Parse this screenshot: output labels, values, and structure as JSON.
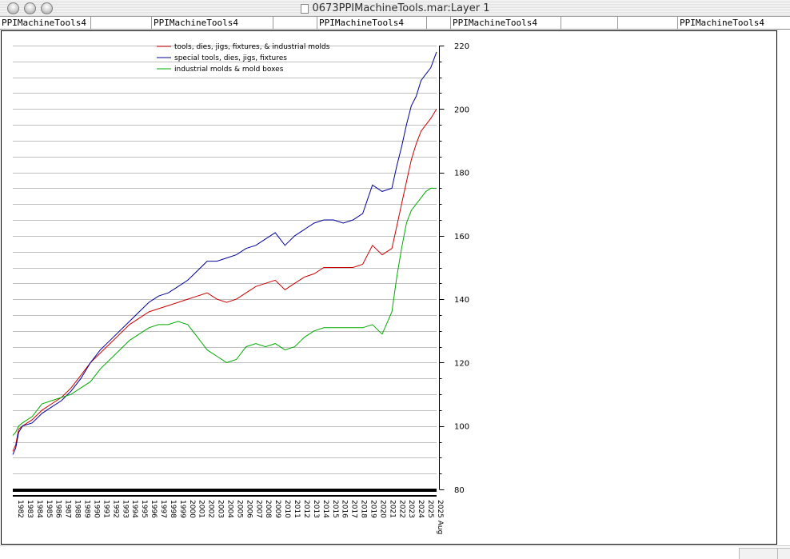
{
  "window": {
    "title": "0673PPIMachineTools.mar:Layer 1"
  },
  "tabs": [
    {
      "label": "PPIMachineTools4"
    },
    {
      "label": ""
    },
    {
      "label": "PPIMachineTools4"
    },
    {
      "label": ""
    },
    {
      "label": "PPIMachineTools4"
    },
    {
      "label": ""
    },
    {
      "label": "PPIMachineTools4"
    },
    {
      "label": ""
    },
    {
      "label": ""
    },
    {
      "label": "PPIMachineTools4"
    }
  ],
  "colors": {
    "series1": "#cc0000",
    "series2": "#00009c",
    "series3": "#00aa00",
    "grid": "#c0c0c0"
  },
  "chart_data": {
    "type": "line",
    "title": "",
    "xlabel": "",
    "ylabel": "",
    "xlim": [
      1982.0,
      2025.6
    ],
    "ylim": [
      80,
      220
    ],
    "y_axis_position": "right",
    "grid": true,
    "legend_position": "top-left",
    "x_tick_labels": [
      "1982",
      "1983",
      "1984",
      "1985",
      "1986",
      "1987",
      "1988",
      "1989",
      "1990",
      "1991",
      "1992",
      "1993",
      "1994",
      "1995",
      "1996",
      "1997",
      "1998",
      "1999",
      "2000",
      "2001",
      "2002",
      "2003",
      "2004",
      "2005",
      "2006",
      "2007",
      "2008",
      "2009",
      "2010",
      "2011",
      "2012",
      "2013",
      "2014",
      "2015",
      "2016",
      "2017",
      "2018",
      "2019",
      "2020",
      "2021",
      "2022",
      "2023",
      "2024",
      "2025",
      "2025 Aug"
    ],
    "y_tick_labels": [
      "80",
      "100",
      "120",
      "140",
      "160",
      "180",
      "200",
      "220"
    ],
    "series": [
      {
        "name": "tools, dies, jigs, fixtures, & industrial molds",
        "x": [
          1982.0,
          1982.3,
          1982.6,
          1983,
          1984,
          1985,
          1986,
          1987,
          1988,
          1989,
          1990,
          1991,
          1992,
          1993,
          1994,
          1995,
          1996,
          1997,
          1998,
          1999,
          2000,
          2001,
          2002,
          2003,
          2004,
          2005,
          2006,
          2007,
          2008,
          2009,
          2010,
          2011,
          2012,
          2013,
          2014,
          2015,
          2016,
          2017,
          2018,
          2019,
          2020,
          2021,
          2021.5,
          2022,
          2022.5,
          2023,
          2023.5,
          2024,
          2024.5,
          2025,
          2025.6
        ],
        "y": [
          92,
          94,
          99,
          100,
          102,
          105,
          107,
          109,
          112,
          116,
          120,
          123,
          126,
          129,
          132,
          134,
          136,
          137,
          138,
          139,
          140,
          141,
          142,
          140,
          139,
          140,
          142,
          144,
          145,
          146,
          143,
          145,
          147,
          148,
          150,
          150,
          150,
          150,
          151,
          157,
          154,
          156,
          163,
          170,
          177,
          184,
          189,
          193,
          195,
          197,
          200
        ]
      },
      {
        "name": "special tools, dies, jigs, fixtures",
        "x": [
          1982.0,
          1982.3,
          1982.6,
          1983,
          1984,
          1985,
          1986,
          1987,
          1988,
          1989,
          1990,
          1991,
          1992,
          1993,
          1994,
          1995,
          1996,
          1997,
          1998,
          1999,
          2000,
          2001,
          2002,
          2003,
          2004,
          2005,
          2006,
          2007,
          2008,
          2009,
          2010,
          2011,
          2012,
          2013,
          2014,
          2015,
          2016,
          2017,
          2018,
          2019,
          2020,
          2021,
          2021.5,
          2022,
          2022.5,
          2023,
          2023.5,
          2024,
          2024.5,
          2025,
          2025.6
        ],
        "y": [
          91,
          93,
          98,
          100,
          101,
          104,
          106,
          108,
          111,
          115,
          120,
          124,
          127,
          130,
          133,
          136,
          139,
          141,
          142,
          144,
          146,
          149,
          152,
          152,
          153,
          154,
          156,
          157,
          159,
          161,
          157,
          160,
          162,
          164,
          165,
          165,
          164,
          165,
          167,
          176,
          174,
          175,
          182,
          188,
          195,
          201,
          204,
          209,
          211,
          213,
          218
        ]
      },
      {
        "name": "industrial molds & mold boxes",
        "x": [
          1982.0,
          1982.3,
          1982.6,
          1983,
          1984,
          1985,
          1986,
          1987,
          1988,
          1989,
          1990,
          1991,
          1992,
          1993,
          1994,
          1995,
          1996,
          1997,
          1998,
          1999,
          2000,
          2001,
          2002,
          2003,
          2004,
          2005,
          2006,
          2007,
          2008,
          2009,
          2010,
          2011,
          2012,
          2013,
          2014,
          2015,
          2016,
          2017,
          2018,
          2019,
          2020,
          2021,
          2021.5,
          2022,
          2022.5,
          2023,
          2023.5,
          2024,
          2024.5,
          2025,
          2025.6
        ],
        "y": [
          97,
          98,
          100,
          101,
          103,
          107,
          108,
          109,
          110,
          112,
          114,
          118,
          121,
          124,
          127,
          129,
          131,
          132,
          132,
          133,
          132,
          128,
          124,
          122,
          120,
          121,
          125,
          126,
          125,
          126,
          124,
          125,
          128,
          130,
          131,
          131,
          131,
          131,
          131,
          132,
          129,
          136,
          147,
          156,
          164,
          168,
          170,
          172,
          174,
          175,
          175
        ]
      }
    ]
  }
}
